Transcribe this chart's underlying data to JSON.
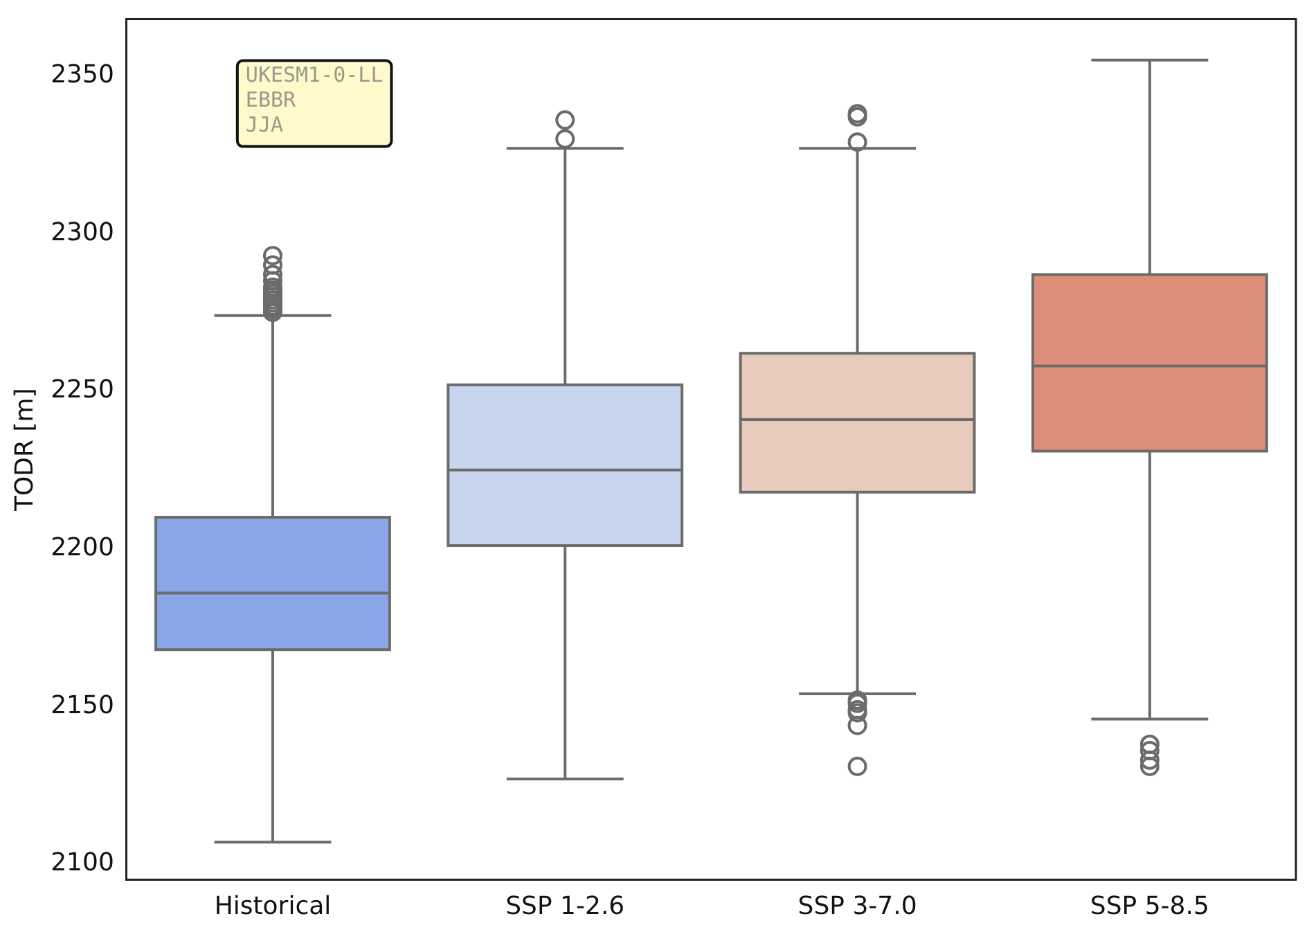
{
  "chart_data": {
    "type": "box",
    "ylabel": "TODR [m]",
    "categories": [
      "Historical",
      "SSP 1-2.6",
      "SSP 3-7.0",
      "SSP 5-8.5"
    ],
    "colors": [
      "#8aa6e8",
      "#c8d5ef",
      "#e8cbbd",
      "#dc8e78"
    ],
    "boxes": [
      {
        "low": 2107,
        "q1": 2168,
        "median": 2186,
        "q3": 2210,
        "high": 2274,
        "outliers": [
          2275,
          2276,
          2277,
          2278,
          2279,
          2280,
          2281,
          2282,
          2283,
          2285,
          2287,
          2290,
          2293
        ]
      },
      {
        "low": 2127,
        "q1": 2201,
        "median": 2225,
        "q3": 2252,
        "high": 2327,
        "outliers": [
          2330,
          2336
        ]
      },
      {
        "low": 2154,
        "q1": 2218,
        "median": 2241,
        "q3": 2262,
        "high": 2327,
        "outliers": [
          2131,
          2144,
          2148,
          2149,
          2151,
          2152,
          2329,
          2337,
          2338
        ]
      },
      {
        "low": 2146,
        "q1": 2231,
        "median": 2258,
        "q3": 2287,
        "high": 2355,
        "outliers": [
          2131,
          2133,
          2136,
          2138
        ]
      }
    ],
    "ylim": [
      2095,
      2368
    ],
    "yticks": [
      2100,
      2150,
      2200,
      2250,
      2300,
      2350
    ],
    "annotations": [
      "UKESM1-0-LL\nEBBR\nJJA"
    ]
  }
}
